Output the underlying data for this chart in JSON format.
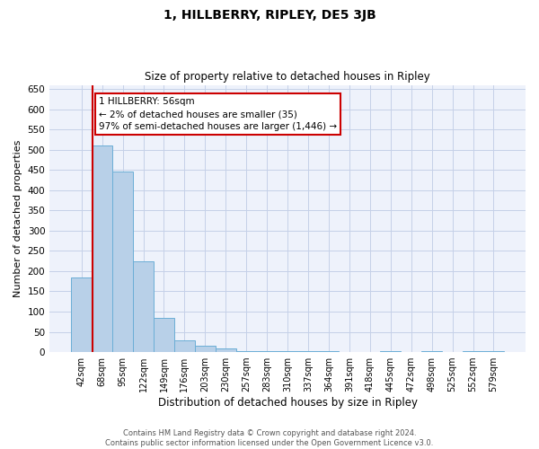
{
  "title": "1, HILLBERRY, RIPLEY, DE5 3JB",
  "subtitle": "Size of property relative to detached houses in Ripley",
  "xlabel": "Distribution of detached houses by size in Ripley",
  "ylabel": "Number of detached properties",
  "categories": [
    "42sqm",
    "68sqm",
    "95sqm",
    "122sqm",
    "149sqm",
    "176sqm",
    "203sqm",
    "230sqm",
    "257sqm",
    "283sqm",
    "310sqm",
    "337sqm",
    "364sqm",
    "391sqm",
    "418sqm",
    "445sqm",
    "472sqm",
    "498sqm",
    "525sqm",
    "552sqm",
    "579sqm"
  ],
  "values": [
    185,
    510,
    445,
    225,
    85,
    28,
    15,
    10,
    2,
    2,
    2,
    2,
    3,
    0,
    0,
    2,
    0,
    2,
    0,
    2,
    2
  ],
  "bar_color": "#b8d0e8",
  "bar_edge_color": "#6baed6",
  "ylim": [
    0,
    660
  ],
  "yticks": [
    0,
    50,
    100,
    150,
    200,
    250,
    300,
    350,
    400,
    450,
    500,
    550,
    600,
    650
  ],
  "property_size": 56,
  "property_label": "1 HILLBERRY: 56sqm",
  "annotation_line1": "← 2% of detached houses are smaller (35)",
  "annotation_line2": "97% of semi-detached houses are larger (1,446) →",
  "vline_color": "#cc0000",
  "annotation_box_edge": "#cc0000",
  "footer_line1": "Contains HM Land Registry data © Crown copyright and database right 2024.",
  "footer_line2": "Contains public sector information licensed under the Open Government Licence v3.0.",
  "bg_color": "#eef2fb",
  "grid_color": "#c5d0e8"
}
